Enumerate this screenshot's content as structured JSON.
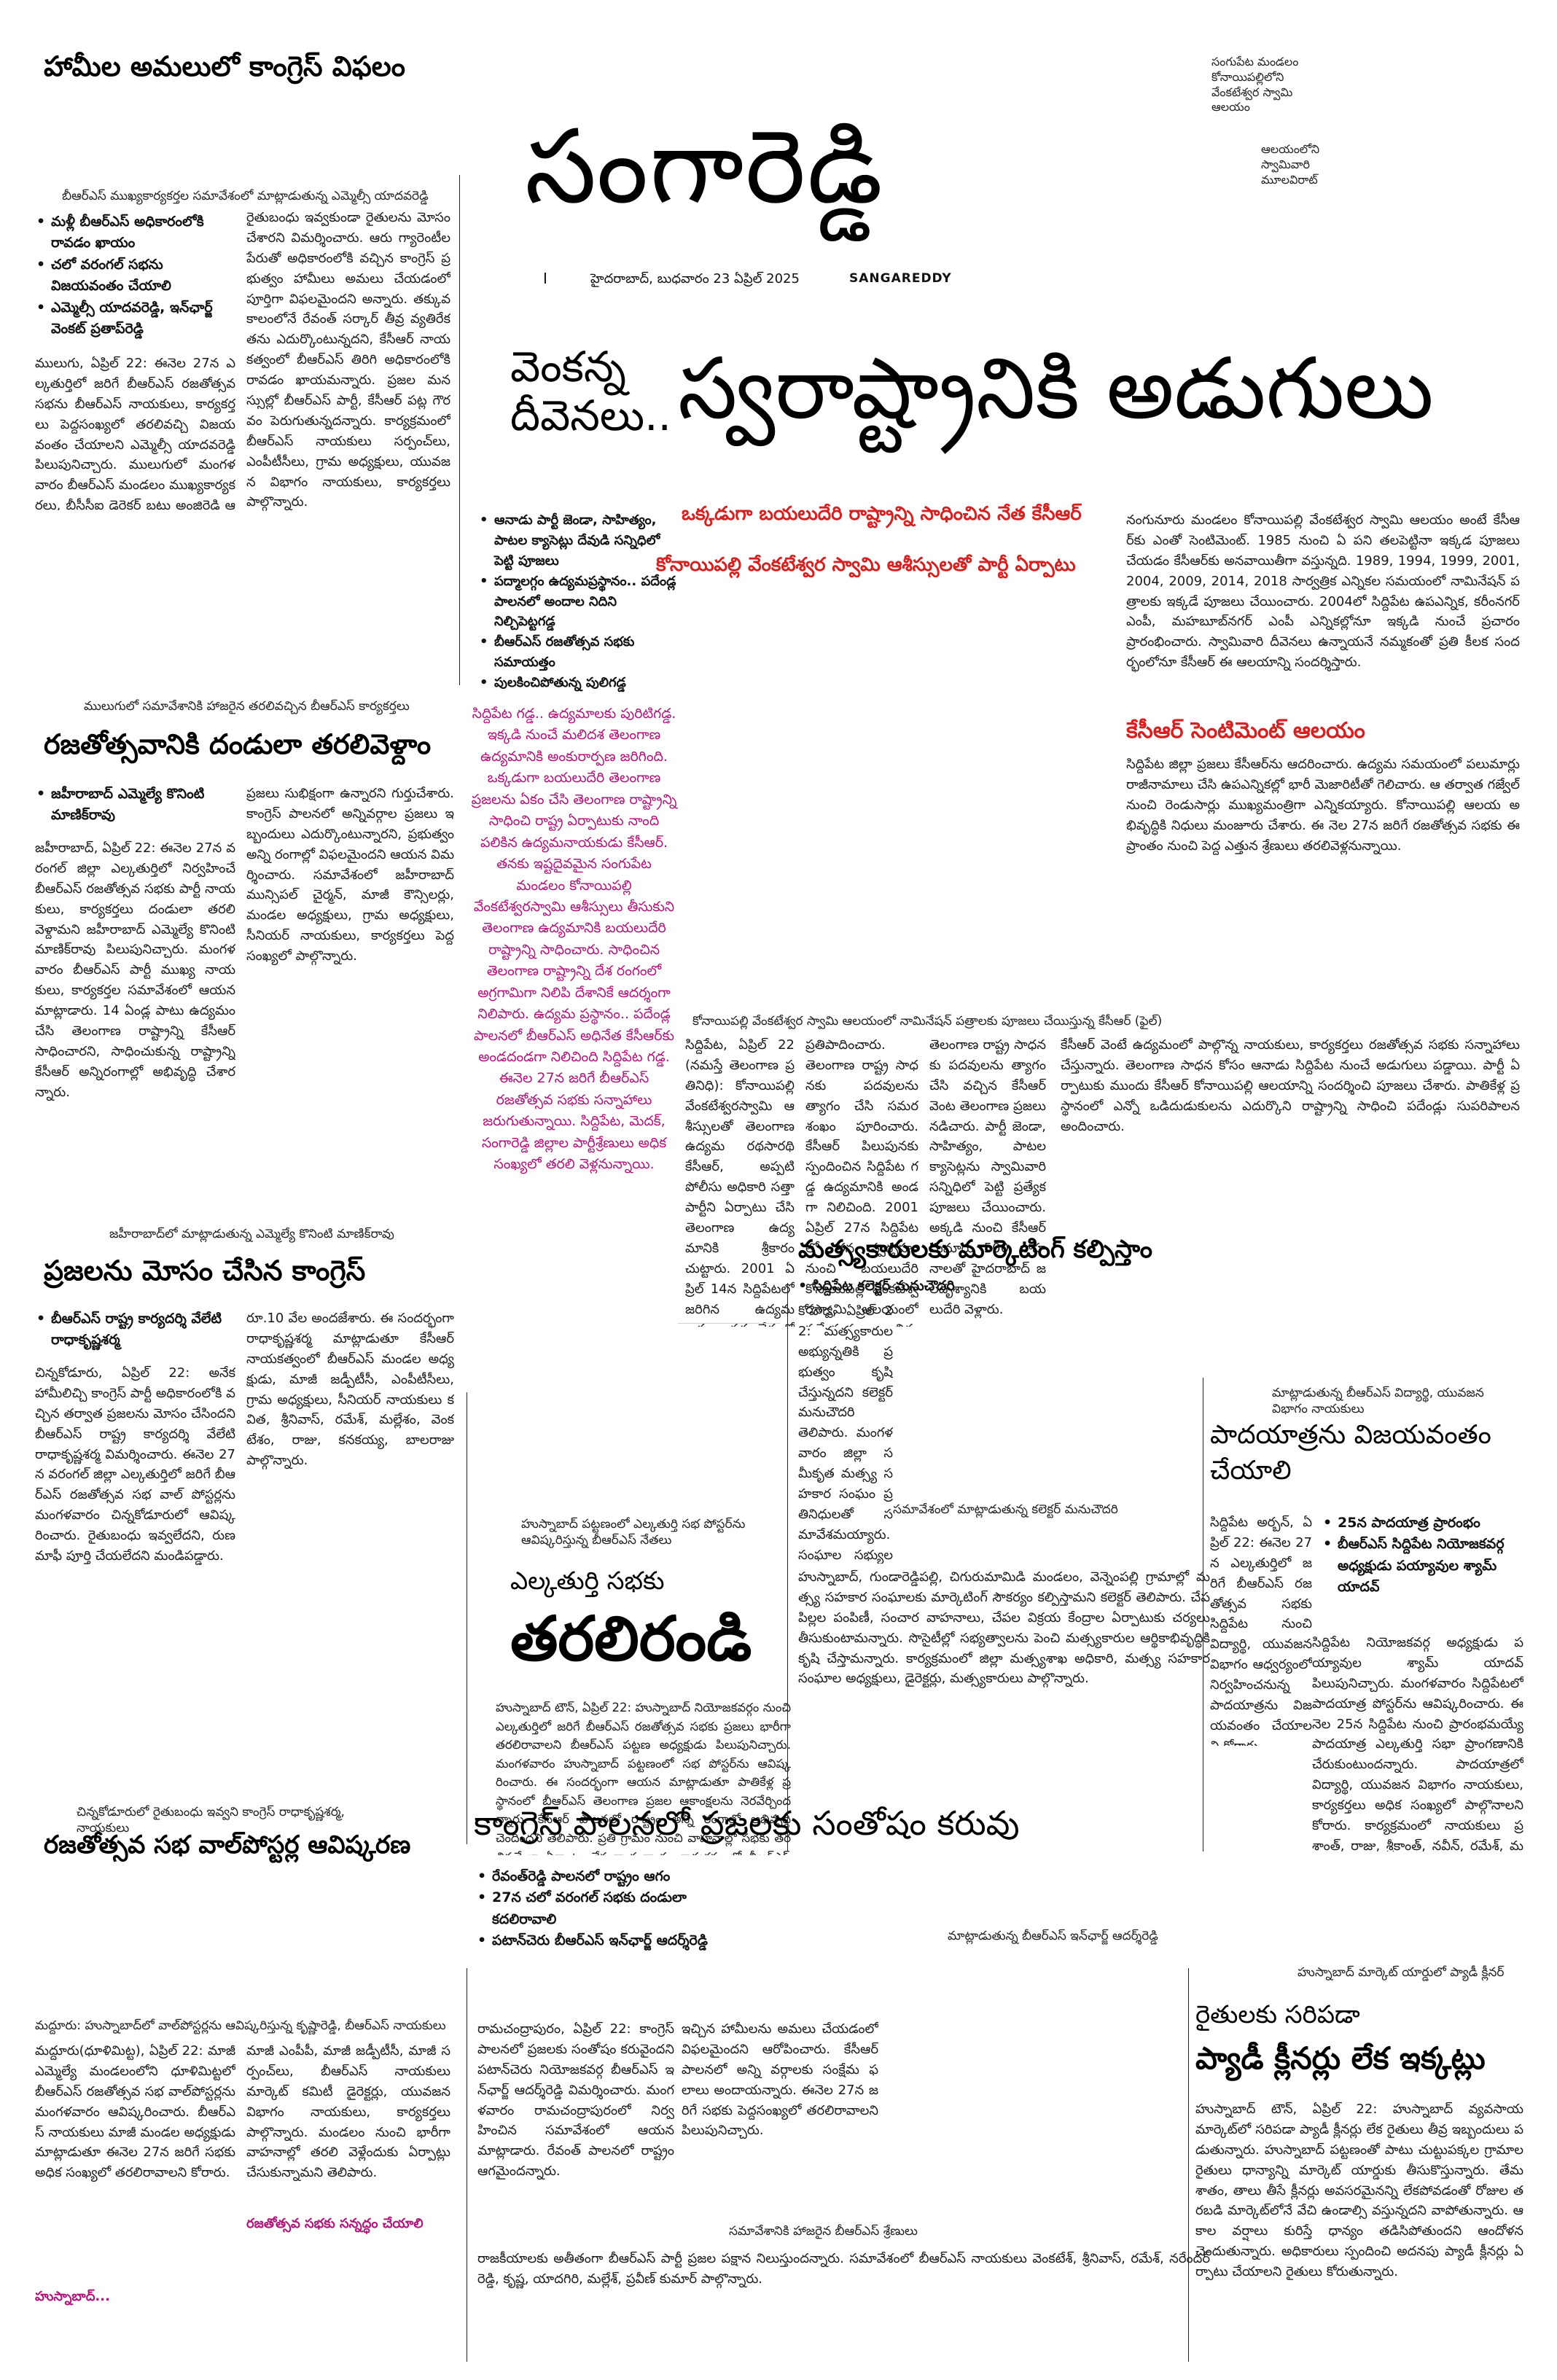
{
  "masthead": {
    "title": "సంగారెడ్డి",
    "dateline": "హైదరాబాద్, బుధవారం 23 ఏప్రిల్ 2025",
    "edition": "SANGAREDDY",
    "page_marker": "I"
  },
  "top_right_captions": {
    "cap1": "సంగుపేట మండలం కోనాయిపల్లిలోని వేంకటేశ్వర స్వామి ఆలయం",
    "cap2": "ఆలయంలోని స్వామివారి మూలవిరాట్"
  },
  "story_congress_failure": {
    "headline": "హామీల అమలులో కాంగ్రెస్ విఫలం",
    "photo_caption": "బీఆర్ఎస్ ముఖ్యకార్యకర్తల సమావేశంలో మాట్లాడుతున్న ఎమ్మెల్సీ యాదవరెడ్డి",
    "bullets": [
      "మళ్లీ బీఆర్ఎస్ అధికారంలోకి రావడం ఖాయం",
      "చలో వరంగల్ సభను విజయవంతం చేయాలి",
      "ఎమ్మెల్సీ యాదవరెడ్డి, ఇన్‌ఛార్జ్ వెంకట్ ప్రతాప్‌రెడ్డి"
    ],
    "col1": "ములుగు, ఏప్రిల్ 22: ఈనెల 27న ఎల్కతుర్తిలో జరిగే బీఆర్ఎస్ రజతోత్సవ సభను బీఆర్ఎస్ నాయకులు, కార్యకర్తలు పెద్దసంఖ్యలో తరలివచ్చి విజయవంతం చేయాలని ఎమ్మెల్సీ యాదవరెడ్డి పిలుపునిచ్చారు. ములుగులో మంగళవారం బీఆర్ఎస్ మండలం ముఖ్యకార్యకర్తలు, బీసీసీఐ డైరెక్టర్ బట్టు అంజిరెడ్డి ఆధ్వర్యంలో సర్వసభ్యసమావేశం నిర్వహించారు. బీఆర్ఎస్ ముఖ్యకార్యకర్తలు సంగారెడ్డి నియోజకవర్గ ఇన్‌ఛార్జి వెంకట ప్రతాప్‌రెడ్డి పాల్గొన్నారు.",
    "col2": "రైతుబంధు ఇవ్వకుండా రైతులను మోసం చేశారని విమర్శించారు. ఆరు గ్యారెంటీల పేరుతో అధికారంలోకి వచ్చిన కాంగ్రెస్ ప్రభుత్వం హామీలు అమలు చేయడంలో పూర్తిగా విఫలమైందని అన్నారు. తక్కువ కాలంలోనే రేవంత్ సర్కార్ తీవ్ర వ్యతిరేకతను ఎదుర్కొంటున్నదని, కేసీఆర్ నాయకత్వంలో బీఆర్ఎస్ తిరిగి అధికారంలోకి రావడం ఖాయమన్నారు. ప్రజల మనస్సుల్లో బీఆర్ఎస్ పార్టీ, కేసీఆర్ పట్ల గౌరవం పెరుగుతున్నదన్నారు. కార్యక్రమంలో బీఆర్ఎస్ నాయకులు సర్పంచ్‌లు, ఎంపీటీసీలు, గ్రామ అధ్యక్షులు, యువజన విభాగం నాయకులు, కార్యకర్తలు పాల్గొన్నారు."
  },
  "story_lead": {
    "kicker": "వెంకన్న దీవెనలు..",
    "headline": "స్వరాష్ట్రానికి అడుగులు",
    "sub1": "ఒక్కడుగా బయలుదేరి రాష్ట్రాన్ని సాధించిన నేత కేసీఆర్",
    "sub2": "కోనాయిపల్లి వేంకటేశ్వర స్వామి ఆశీస్సులతో పార్టీ ఏర్పాటు",
    "bullets": [
      "ఆనాడు పార్టీ జెండా, సాహిత్యం, పాటల క్యాసెట్లు దేవుడి సన్నిధిలో పెట్టి పూజలు",
      "పద్మాలగ్గం ఉద్యమప్రస్థానం.. పదేండ్ల పాలనలో అందాల నిదిని నిల్చిపెట్టగడ్డ",
      "బీఆర్ఎస్ రజతోత్సవ సభకు సమాయత్తం",
      "పులకించిపోతున్న పులిగడ్డ"
    ],
    "magenta_box": "సిద్దిపేట గడ్డ.. ఉద్యమాలకు పురిటిగడ్డ. ఇక్కడి నుంచే మలిదశ తెలంగాణ ఉద్యమానికి అంకురార్పణ జరిగింది. ఒక్కడుగా బయలుదేరి తెలంగాణ ప్రజలను ఏకం చేసి తెలంగాణ రాష్ట్రాన్ని సాధించి రాష్ట్ర ఏర్పాటుకు నాంది పలికిన ఉద్యమనాయకుడు కేసీఆర్. తనకు ఇష్టదైవమైన సంగుపేట మండలం కోనాయిపల్లి వేంకటేశ్వరస్వామి ఆశీస్సులు తీసుకుని తెలంగాణ ఉద్యమానికి బయలుదేరి రాష్ట్రాన్ని సాధించారు. సాధించిన తెలంగాణ రాష్ట్రాన్ని దేశ రంగంలో అగ్రగామిగా నిలిపి దేశానికే ఆదర్శంగా నిలిపారు. ఉద్యమ ప్రస్థానం.. పదేండ్ల పాలనలో బీఆర్ఎస్ అధినేత కేసీఆర్‌కు అండదండగా నిలిచింది సిద్దిపేట గడ్డ. ఈనెల 27న జరిగే బీఆర్ఎస్ రజతోత్సవ సభకు సన్నాహాలు జరుగుతున్నాయి. సిద్దిపేట, మెదక్, సంగారెడ్డి జిల్లాల పార్టీశ్రేణులు అధిక సంఖ్యలో తరలి వెళ్లనున్నాయి.",
    "photo_caption": "కోనాయిపల్లి వేంకటేశ్వర స్వామి ఆలయంలో నామినేషన్ పత్రాలకు పూజలు చేయిస్తున్న కేసీఆర్ (ఫైల్)",
    "subhead_red": "కేసీఆర్ సెంటిమెంట్ ఆలయం",
    "col_a": "సిద్దిపేట, ఏప్రిల్ 22 (నమస్తే తెలంగాణ ప్రతినిధి): కోనాయిపల్లి వేంకటేశ్వరస్వామి ఆశీస్సులతో తెలంగాణ ఉద్యమ రథసారథి కేసీఆర్, అప్పటి పోలీసు అధికారి సత్తా పార్టీని ఏర్పాటు చేసి తెలంగాణ ఉద్యమానికి శ్రీకారం చుట్టారు. 2001 ఏప్రిల్ 14న సిద్దిపేటలో జరిగిన ఉద్యమకారుల సమావేశంలో అనంతరం జిల్లాలో టీఆర్ఎస్ జెండా ఆవిష్కరించారు.",
    "col_b": "ప్రతిపాదించారు. తెలంగాణ రాష్ట్ర సాధనకు పదవులను త్యాగం చేసి సమరశంఖం పూరించారు. కేసీఆర్ పిలుపునకు స్పందించిన సిద్దిపేట గడ్డ ఉద్యమానికి అండగా నిలిచింది. 2001 ఏప్రిల్ 27న సిద్దిపేటలో తన స్వగృహం నుంచి బయలుదేరి కోనాయిపల్లి వేంకటేశ్వరస్వామి ఆలయంలో ప్రత్యేక పూజలు నిర్వహించారు.",
    "col_c": "తెలంగాణ రాష్ట్ర సాధనకు పదవులను త్యాగం చేసి వచ్చిన కేసీఆర్ వెంట తెలంగాణ ప్రజలు నడిచారు. పార్టీ జెండా, సాహిత్యం, పాటల క్యాసెట్లను స్వామివారి సన్నిధిలో పెట్టి ప్రత్యేక పూజలు చేయించారు. అక్కడి నుంచి కేసీఆర్ సుమారు 500 వాహనాలతో హైదరాబాద్ జలదృశ్యానికి బయలుదేరి వెళ్లారు.",
    "col_d": "నంగునూరు మండలం కోనాయిపల్లి వేంకటేశ్వర స్వామి ఆలయం అంటే కేసీఆర్‌కు ఎంతో సెంటిమెంట్. 1985 నుంచి ఏ పని తలపెట్టినా ఇక్కడ పూజలు చేయడం కేసీఆర్‌కు అనవాయితీగా వస్తున్నది. 1989, 1994, 1999, 2001, 2004, 2009, 2014, 2018 సార్వత్రిక ఎన్నికల సమయంలో నామినేషన్ పత్రాలకు ఇక్కడే పూజలు చేయించారు. 2004లో సిద్దిపేట ఉపఎన్నిక, కరీంనగర్ ఎంపీ, మహబూబ్‌నగర్ ఎంపీ ఎన్నికల్లోనూ ఇక్కడి నుంచే ప్రచారం ప్రారంభించారు. స్వామివారి దీవెనలు ఉన్నాయనే నమ్మకంతో ప్రతి కీలక సందర్భంలోనూ కేసీఆర్ ఈ ఆలయాన్ని సందర్శిస్తారు.",
    "col_e": "సిద్దిపేట జిల్లా ప్రజలు కేసీఆర్‌ను ఆదరించారు. ఉద్యమ సమయంలో పలుమార్లు రాజీనామాలు చేసి ఉపఎన్నికల్లో భారీ మెజారిటీతో గెలిచారు. ఆ తర్వాత గజ్వేల్ నుంచి రెండుసార్లు ముఖ్యమంత్రిగా ఎన్నికయ్యారు. కోనాయిపల్లి ఆలయ అభివృద్ధికి నిధులు మంజూరు చేశారు. ఈ నెల 27న జరిగే రజతోత్సవ సభకు ఈ ప్రాంతం నుంచి పెద్ద ఎత్తున శ్రేణులు తరలివెళ్లనున్నాయి.",
    "col_f": "కేసీఆర్ వెంటే ఉద్యమంలో పాల్గొన్న నాయకులు, కార్యకర్తలు రజతోత్సవ సభకు సన్నాహాలు చేస్తున్నారు. తెలంగాణ సాధన కోసం ఆనాడు సిద్దిపేట నుంచే అడుగులు పడ్డాయి. పార్టీ ఏర్పాటుకు ముందు కేసీఆర్ కోనాయిపల్లి ఆలయాన్ని సందర్శించి పూజలు చేశారు. పాతికేళ్ల ప్రస్థానంలో ఎన్నో ఒడిదుడుకులను ఎదుర్కొని రాష్ట్రాన్ని సాధించి పదేండ్లు సుపరిపాలన అందించారు."
  },
  "story_rally": {
    "photo_caption": "ములుగులో సమావేశానికి హాజరైన తరలివచ్చిన బీఆర్ఎస్ కార్యకర్తలు",
    "headline": "రజతోత్సవానికి దండులా తరలివెళ్దాం",
    "bullets": [
      "జహీరాబాద్ ఎమ్మెల్యే కొనింటి మాణిక్‌రావు"
    ],
    "col1": "జహీరాబాద్, ఏప్రిల్ 22: ఈనెల 27న వరంగల్ జిల్లా ఎల్కతుర్తిలో నిర్వహించే బీఆర్ఎస్ రజతోత్సవ సభకు పార్టీ నాయకులు, కార్యకర్తలు దండులా తరలి వెళ్దామని జహీరాబాద్ ఎమ్మెల్యే కొనింటి మాణిక్‌రావు పిలుపునిచ్చారు. మంగళవారం బీఆర్ఎస్ పార్టీ ముఖ్య నాయకులు, కార్యకర్తల సమావేశంలో ఆయన మాట్లాడారు. 14 ఏండ్ల పాటు ఉద్యమం చేసి తెలంగాణ రాష్ట్రాన్ని కేసీఆర్ సాధించారని, సాధించుకున్న రాష్ట్రాన్ని కేసీఆర్ అన్నిరంగాల్లో అభివృద్ధి చేశారన్నారు.",
    "col2": "ప్రజలు సుభిక్షంగా ఉన్నారని గుర్తుచేశారు. కాంగ్రెస్ పాలనలో అన్నివర్గాల ప్రజలు ఇబ్బందులు ఎదుర్కొంటున్నారని, ప్రభుత్వం అన్ని రంగాల్లో విఫలమైందని ఆయన విమర్శించారు. సమావేశంలో జహీరాబాద్ మున్సిపల్ చైర్మన్, మాజీ కౌన్సిలర్లు, మండల అధ్యక్షులు, గ్రామ అధ్యక్షులు, సీనియర్ నాయకులు, కార్యకర్తలు పెద్ద సంఖ్యలో పాల్గొన్నారు.",
    "caption_below": "జహీరాబాద్‌లో మాట్లాడుతున్న ఎమ్మెల్యే కొనింటి మాణిక్‌రావు"
  },
  "story_deception": {
    "headline": "ప్రజలను మోసం చేసిన కాంగ్రెస్",
    "bullets": [
      "బీఆర్ఎస్ రాష్ట్ర కార్యదర్శి వేలేటి రాధాకృష్ణశర్మ"
    ],
    "col1": "చిన్నకోడూరు, ఏప్రిల్ 22: అనేక హామీలిచ్చి కాంగ్రెస్ పార్టీ అధికారంలోకి వచ్చిన తర్వాత ప్రజలను మోసం చేసిందని బీఆర్ఎస్ రాష్ట్ర కార్యదర్శి వేలేటి రాధాకృష్ణశర్మ విమర్శించారు. ఈనెల 27న వరంగల్ జిల్లా ఎల్కతుర్తిలో జరిగే బీఆర్ఎస్ రజతోత్సవ సభ వాల్ పోస్టర్లను మంగళవారం చిన్నకోడూరులో ఆవిష్కరించారు. రైతుబంధు ఇవ్వలేదని, రుణమాఫీ పూర్తి చేయలేదని మండిపడ్డారు.",
    "col2": "రూ.10 వేల అందజేశారు. ఈ సందర్భంగా రాధాకృష్ణశర్మ మాట్లాడుతూ కేసీఆర్ నాయకత్వంలో బీఆర్ఎస్ మండల అధ్యక్షుడు, మాజీ జడ్పీటీసీ, ఎంపీటీసీలు, గ్రామ అధ్యక్షులు, సీనియర్ నాయకులు కవిత, శ్రీనివాస్, రమేశ్, మల్లేశం, వెంకటేశం, రాజు, కనకయ్య, బాలరాజు పాల్గొన్నారు."
  },
  "story_fishermen": {
    "headline": "మత్స్యకారులకు మార్కెటింగ్ కల్పిస్తాం",
    "bullets": [
      "సిద్దిపేట కలెక్టర్ మనుచౌదరి"
    ],
    "col1": "కోహెడ, ఏప్రిల్ 22: మత్స్యకారుల అభ్యున్నతికి ప్రభుత్వం కృషి చేస్తున్నదని కలెక్టర్ మనుచౌదరి తెలిపారు. మంగళవారం జిల్లా సమీకృత మత్స్య సహకార సంఘం ప్రతినిధులతో సమావేశమయ్యారు. సంఘాల సభ్యులకు అవసరమైన సౌకర్యాలు కల్పిస్తామన్నారు.",
    "caption": "సమావేశంలో మాట్లాడుతున్న కలెక్టర్ మనుచౌదరి",
    "body": "హుస్నాబాద్, గుండారెడ్డిపల్లి, చిగురుమామిడి మండలం, వెన్నెంపల్లి గ్రామాల్లో మత్స్య సహకార సంఘాలకు మార్కెటింగ్ సౌకర్యం కల్పిస్తామని కలెక్టర్ తెలిపారు. చేప పిల్లల పంపిణీ, సంచార వాహనాలు, చేపల విక్రయ కేంద్రాల ఏర్పాటుకు చర్యలు తీసుకుంటామన్నారు. సొసైటీల్లో సభ్యత్వాలను పెంచి మత్స్యకారుల ఆర్థికాభివృద్ధికి కృషి చేస్తామన్నారు. కార్యక్రమంలో జిల్లా మత్స్యశాఖ అధికారి, మత్స్య సహకార సంఘాల అధ్యక్షులు, డైరెక్టర్లు, మత్స్యకారులు పాల్గొన్నారు."
  },
  "story_elkathurthi": {
    "caption": "హుస్నాబాద్ పట్టణంలో ఎల్కతుర్తి సభ పోస్టర్‌ను ఆవిష్కరిస్తున్న బీఆర్ఎస్ నేతలు",
    "head_small": "ఎల్కతుర్తి సభకు",
    "head_big": "తరలిరండి",
    "body": "హుస్నాబాద్ టౌన్, ఏప్రిల్ 22: హుస్నాబాద్ నియోజకవర్గం నుంచి ఎల్కతుర్తిలో జరిగే బీఆర్ఎస్ రజతోత్సవ సభకు ప్రజలు భారీగా తరలిరావాలని బీఆర్ఎస్ పట్టణ అధ్యక్షుడు పిలుపునిచ్చారు. మంగళవారం హుస్నాబాద్ పట్టణంలో సభ పోస్టర్‌ను ఆవిష్కరించారు. ఈ సందర్భంగా ఆయన మాట్లాడుతూ పాతికేళ్ల ప్రస్థానంలో బీఆర్ఎస్ తెలంగాణ ప్రజల ఆకాంక్షలను నెరవేర్చిందన్నారు. కేసీఆర్ పాలనలో రాష్ట్రం అన్ని రంగాల్లో అభివృద్ధి చెందిందని తెలిపారు. ప్రతి గ్రామం నుంచి వాహనాల్లో సభకు తరలివచ్చేలా ఏర్పాట్లు చేస్తున్నామన్నారు. కార్యక్రమంలో బీఆర్ఎస్ నాయకులు, మాజీ ప్రజాప్రతినిధులు, కార్యకర్తలు పాల్గొన్నారు."
  },
  "story_padayatra": {
    "caption": "మాట్లాడుతున్న బీఆర్ఎస్ విద్యార్థి, యువజన విభాగం నాయకులు",
    "headline": "పాదయాత్రను విజయవంతం చేయాలి",
    "bullets": [
      "25న పాదయాత్ర ప్రారంభం",
      "బీఆర్ఎస్ సిద్దిపేట నియోజకవర్గ అధ్యక్షుడు పయ్యావుల శ్యామ్ యాదవ్"
    ],
    "col1": "సిద్దిపేట అర్బన్, ఏప్రిల్ 22: ఈనెల 27న ఎల్కతుర్తిలో జరిగే బీఆర్ఎస్ రజతోత్సవ సభకు సిద్దిపేట నుంచి విద్యార్థి, యువజన విభాగం ఆధ్వర్యంలో నిర్వహించనున్న పాదయాత్రను విజయవంతం చేయాలని కోరారు.",
    "body": "సిద్దిపేట నియోజకవర్గ అధ్యక్షుడు పయ్యావుల శ్యామ్ యాదవ్ పిలుపునిచ్చారు. మంగళవారం సిద్దిపేటలో పాదయాత్ర పోస్టర్‌ను ఆవిష్కరించారు. ఈ నెల 25న సిద్దిపేట నుంచి ప్రారంభమయ్యే పాదయాత్ర ఎల్కతుర్తి సభా ప్రాంగణానికి చేరుకుంటుందన్నారు. పాదయాత్రలో విద్యార్థి, యువజన విభాగం నాయకులు, కార్యకర్తలు అధిక సంఖ్యలో పాల్గొనాలని కోరారు. కార్యక్రమంలో నాయకులు ప్రశాంత్, రాజు, శ్రీకాంత్, నవీన్, రమేశ్, మహేశ్ పాల్గొన్నారు."
  },
  "story_wallposter": {
    "caption_top": "చిన్నకోడూరులో రైతుబంధు ఇవ్వని కాంగ్రెస్ రాధాకృష్ణశర్మ, నాయకులు",
    "headline": "రజతోత్సవ సభ వాల్‌పోస్టర్ల ఆవిష్కరణ",
    "caption": "మద్దూరు: హుస్నాబాద్‌లో వాల్‌పోస్టర్లను ఆవిష్కరిస్తున్న కృష్ణారెడ్డి, బీఆర్ఎస్ నాయకులు",
    "col1": "మద్దూరు(ధూళిమిట్ట), ఏప్రిల్ 22: మాజీ ఎమ్మెల్యే మండలంలోని ధూళిమిట్టలో బీఆర్ఎస్ రజతోత్సవ సభ వాల్‌పోస్టర్లను మంగళవారం ఆవిష్కరించారు. బీఆర్ఎస్ నాయకులు మాజీ మండల అధ్యక్షుడు మాట్లాడుతూ ఈనెల 27న జరిగే సభకు అధిక సంఖ్యలో తరలిరావాలని కోరారు.",
    "col2": "మాజీ ఎంపీపీ, మాజీ జడ్పీటీసీ, మాజీ సర్పంచ్‌లు, బీఆర్ఎస్ నాయకులు మార్కెట్ కమిటీ డైరెక్టర్లు, యువజన విభాగం నాయకులు, కార్యకర్తలు పాల్గొన్నారు. మండలం నుంచి భారీగా వాహనాల్లో తరలి వెళ్లేందుకు ఏర్పాట్లు చేసుకున్నామని తెలిపారు.",
    "magenta_head": "రజతోత్సవ సభకు సన్నద్ధం చేయాలి",
    "magenta_head2": "హుస్నాబాద్..."
  },
  "story_happiness": {
    "headline": "కాంగ్రెస్ పాలనలో ప్రజలకు సంతోషం కరువు",
    "bullets": [
      "రేవంత్‌రెడ్డి పాలనలో రాష్ట్రం ఆగం",
      "27న చలో వరంగల్ సభకు దండులా కదలిరావాలి",
      "పటాన్‌చెరు బీఆర్ఎస్ ఇన్‌ఛార్జ్ ఆదర్శ్‌రెడ్డి"
    ],
    "caption": "మాట్లాడుతున్న బీఆర్ఎస్ ఇన్‌ఛార్జ్ ఆదర్శ్‌రెడ్డి",
    "col1": "రామచంద్రాపురం, ఏప్రిల్ 22: కాంగ్రెస్ పాలనలో ప్రజలకు సంతోషం కరువైందని పటాన్‌చెరు నియోజకవర్గ బీఆర్ఎస్ ఇన్‌ఛార్జ్ ఆదర్శ్‌రెడ్డి విమర్శించారు. మంగళవారం రామచంద్రాపురంలో నిర్వహించిన సమావేశంలో ఆయన మాట్లాడారు. రేవంత్ పాలనలో రాష్ట్రం ఆగమైందన్నారు.",
    "col2": "ఇచ్చిన హామీలను అమలు చేయడంలో విఫలమైందని ఆరోపించారు. కేసీఆర్ పాలనలో అన్ని వర్గాలకు సంక్షేమ ఫలాలు అందాయన్నారు. ఈనెల 27న జరిగే సభకు పెద్దసంఖ్యలో తరలిరావాలని పిలుపునిచ్చారు.",
    "caption2": "సమావేశానికి హాజరైన బీఆర్ఎస్ శ్రేణులు",
    "col3": "రాజకీయాలకు అతీతంగా బీఆర్ఎస్ పార్టీ ప్రజల పక్షాన నిలుస్తుందన్నారు. సమావేశంలో బీఆర్ఎస్ నాయకులు వెంకటేశ్, శ్రీనివాస్, రమేశ్, నరేందర్ రెడ్డి, కృష్ణ, యాదగిరి, మల్లేశ్, ప్రవీణ్ కుమార్ పాల్గొన్నారు."
  },
  "story_paddy": {
    "caption": "హుస్నాబాద్ మార్కెట్ యార్డులో ప్యాడీ క్లీనర్",
    "kicker": "రైతులకు సరిపడా",
    "headline": "ప్యాడీ క్లీనర్లు లేక ఇక్కట్లు",
    "body": "హుస్నాబాద్ టౌన్, ఏప్రిల్ 22: హుస్నాబాద్ వ్యవసాయ మార్కెట్‌లో సరిపడా ప్యాడీ క్లీనర్లు లేక రైతులు తీవ్ర ఇబ్బందులు పడుతున్నారు. హుస్నాబాద్ పట్టణంతో పాటు చుట్టుపక్కల గ్రామాల రైతులు ధాన్యాన్ని మార్కెట్ యార్డుకు తీసుకొస్తున్నారు. తేమ శాతం, తాలు తీసే క్లీనర్లు అవసరమైనన్ని లేకపోవడంతో రోజుల తరబడి మార్కెట్‌లోనే వేచి ఉండాల్సి వస్తున్నదని వాపోతున్నారు. ఆకాల వర్షాలు కురిస్తే ధాన్యం తడిసిపోతుందని ఆందోళన చెందుతున్నారు. అధికారులు స్పందించి అదనపు ప్యాడీ క్లీనర్లు ఏర్పాటు చేయాలని రైతులు కోరుతున్నారు."
  }
}
